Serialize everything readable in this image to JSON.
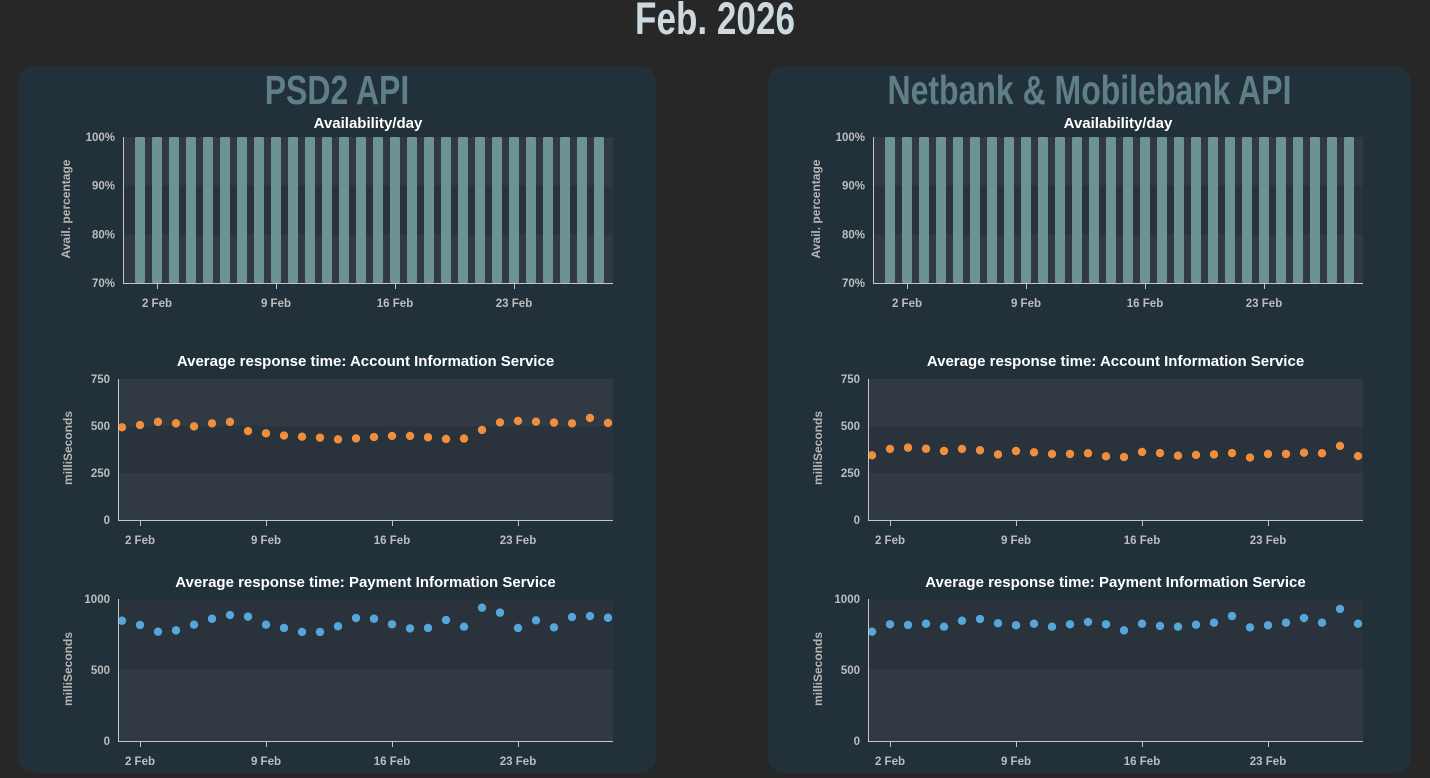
{
  "page_title": "Feb. 2026",
  "panels": [
    {
      "title": "PSD2 API"
    },
    {
      "title": "Netbank & Mobilebank API"
    }
  ],
  "colors": {
    "page_bg": "#272727",
    "panel_bg": "#22303a",
    "panel_title": "#5e7f88",
    "page_title": "#ccd9e0",
    "chart_title": "#ffffff",
    "tick_label": "#bdbdbd",
    "axis_title": "#b5b5b5",
    "axis_line": "#c5c5c5",
    "band_light": "#313a42",
    "band_dark": "#2a333b",
    "bar": "#6d9296",
    "ais_dot": "#ef8f3c",
    "pis_dot": "#55a7da"
  },
  "chart_data": [
    {
      "panel": "PSD2 API",
      "type": "bar",
      "title": "Availability/day",
      "ylabel": "Avail. percentage",
      "ylim": [
        70,
        100
      ],
      "ytick_values": [
        70,
        80,
        90,
        100
      ],
      "ytick_labels": [
        "70%",
        "80%",
        "90%",
        "100%"
      ],
      "days": [
        1,
        2,
        3,
        4,
        5,
        6,
        7,
        8,
        9,
        10,
        11,
        12,
        13,
        14,
        15,
        16,
        17,
        18,
        19,
        20,
        21,
        22,
        23,
        24,
        25,
        26,
        27,
        28
      ],
      "xtick_days": [
        2,
        9,
        16,
        23
      ],
      "xtick_labels": [
        "2 Feb",
        "9 Feb",
        "16 Feb",
        "23 Feb"
      ],
      "values": [
        100,
        100,
        100,
        100,
        100,
        100,
        100,
        100,
        100,
        100,
        100,
        100,
        100,
        100,
        100,
        100,
        100,
        100,
        100,
        100,
        100,
        100,
        100,
        100,
        100,
        100,
        100,
        100
      ],
      "color": "#6d9296"
    },
    {
      "panel": "PSD2 API",
      "type": "scatter",
      "title": "Average response time: Account Information Service",
      "ylabel": "milliSeconds",
      "ylim": [
        0,
        750
      ],
      "ytick_values": [
        0,
        250,
        500,
        750
      ],
      "ytick_labels": [
        "0",
        "250",
        "500",
        "750"
      ],
      "days": [
        1,
        2,
        3,
        4,
        5,
        6,
        7,
        8,
        9,
        10,
        11,
        12,
        13,
        14,
        15,
        16,
        17,
        18,
        19,
        20,
        21,
        22,
        23,
        24,
        25,
        26,
        27,
        28
      ],
      "xtick_days": [
        2,
        9,
        16,
        23
      ],
      "xtick_labels": [
        "2 Feb",
        "9 Feb",
        "16 Feb",
        "23 Feb"
      ],
      "values": [
        493,
        505,
        522,
        514,
        498,
        514,
        522,
        473,
        461,
        449,
        443,
        438,
        429,
        434,
        441,
        447,
        447,
        440,
        431,
        433,
        479,
        519,
        527,
        523,
        518,
        514,
        543,
        516
      ],
      "color": "#ef8f3c"
    },
    {
      "panel": "PSD2 API",
      "type": "scatter",
      "title": "Average response time: Payment Information Service",
      "ylabel": "milliSeconds",
      "ylim": [
        0,
        1000
      ],
      "ytick_values": [
        0,
        500,
        1000
      ],
      "ytick_labels": [
        "0",
        "500",
        "1000"
      ],
      "days": [
        1,
        2,
        3,
        4,
        5,
        6,
        7,
        8,
        9,
        10,
        11,
        12,
        13,
        14,
        15,
        16,
        17,
        18,
        19,
        20,
        21,
        22,
        23,
        24,
        25,
        26,
        27,
        28
      ],
      "xtick_days": [
        2,
        9,
        16,
        23
      ],
      "xtick_labels": [
        "2 Feb",
        "9 Feb",
        "16 Feb",
        "23 Feb"
      ],
      "values": [
        847,
        817,
        770,
        779,
        819,
        861,
        887,
        876,
        819,
        796,
        768,
        768,
        808,
        866,
        861,
        822,
        793,
        796,
        852,
        805,
        939,
        904,
        796,
        850,
        800,
        873,
        880,
        868
      ],
      "color": "#55a7da"
    },
    {
      "panel": "Netbank & Mobilebank API",
      "type": "bar",
      "title": "Availability/day",
      "ylabel": "Avail. percentage",
      "ylim": [
        70,
        100
      ],
      "ytick_values": [
        70,
        80,
        90,
        100
      ],
      "ytick_labels": [
        "70%",
        "80%",
        "90%",
        "100%"
      ],
      "days": [
        1,
        2,
        3,
        4,
        5,
        6,
        7,
        8,
        9,
        10,
        11,
        12,
        13,
        14,
        15,
        16,
        17,
        18,
        19,
        20,
        21,
        22,
        23,
        24,
        25,
        26,
        27,
        28
      ],
      "xtick_days": [
        2,
        9,
        16,
        23
      ],
      "xtick_labels": [
        "2 Feb",
        "9 Feb",
        "16 Feb",
        "23 Feb"
      ],
      "values": [
        100,
        100,
        100,
        100,
        100,
        100,
        100,
        100,
        100,
        100,
        100,
        100,
        100,
        100,
        100,
        100,
        100,
        100,
        100,
        100,
        100,
        100,
        100,
        100,
        100,
        100,
        100,
        100
      ],
      "color": "#6d9296"
    },
    {
      "panel": "Netbank & Mobilebank API",
      "type": "scatter",
      "title": "Average response time: Account Information Service",
      "ylabel": "milliSeconds",
      "ylim": [
        0,
        750
      ],
      "ytick_values": [
        0,
        250,
        500,
        750
      ],
      "ytick_labels": [
        "0",
        "250",
        "500",
        "750"
      ],
      "days": [
        1,
        2,
        3,
        4,
        5,
        6,
        7,
        8,
        9,
        10,
        11,
        12,
        13,
        14,
        15,
        16,
        17,
        18,
        19,
        20,
        21,
        22,
        23,
        24,
        25,
        26,
        27,
        28
      ],
      "xtick_days": [
        2,
        9,
        16,
        23
      ],
      "xtick_labels": [
        "2 Feb",
        "9 Feb",
        "16 Feb",
        "23 Feb"
      ],
      "values": [
        344,
        378,
        385,
        379,
        367,
        378,
        371,
        349,
        367,
        360,
        351,
        351,
        355,
        339,
        335,
        362,
        356,
        342,
        346,
        349,
        356,
        332,
        351,
        351,
        358,
        355,
        394,
        340
      ],
      "color": "#ef8f3c"
    },
    {
      "panel": "Netbank & Mobilebank API",
      "type": "scatter",
      "title": "Average response time: Payment Information Service",
      "ylabel": "milliSeconds",
      "ylim": [
        0,
        1000
      ],
      "ytick_values": [
        0,
        500,
        1000
      ],
      "ytick_labels": [
        "0",
        "500",
        "1000"
      ],
      "days": [
        1,
        2,
        3,
        4,
        5,
        6,
        7,
        8,
        9,
        10,
        11,
        12,
        13,
        14,
        15,
        16,
        17,
        18,
        19,
        20,
        21,
        22,
        23,
        24,
        25,
        26,
        27,
        28
      ],
      "xtick_days": [
        2,
        9,
        16,
        23
      ],
      "xtick_labels": [
        "2 Feb",
        "9 Feb",
        "16 Feb",
        "23 Feb"
      ],
      "values": [
        770,
        822,
        817,
        826,
        805,
        847,
        859,
        829,
        815,
        826,
        805,
        822,
        838,
        822,
        779,
        826,
        810,
        805,
        819,
        833,
        880,
        800,
        815,
        833,
        866,
        833,
        930,
        826
      ],
      "color": "#55a7da"
    }
  ]
}
